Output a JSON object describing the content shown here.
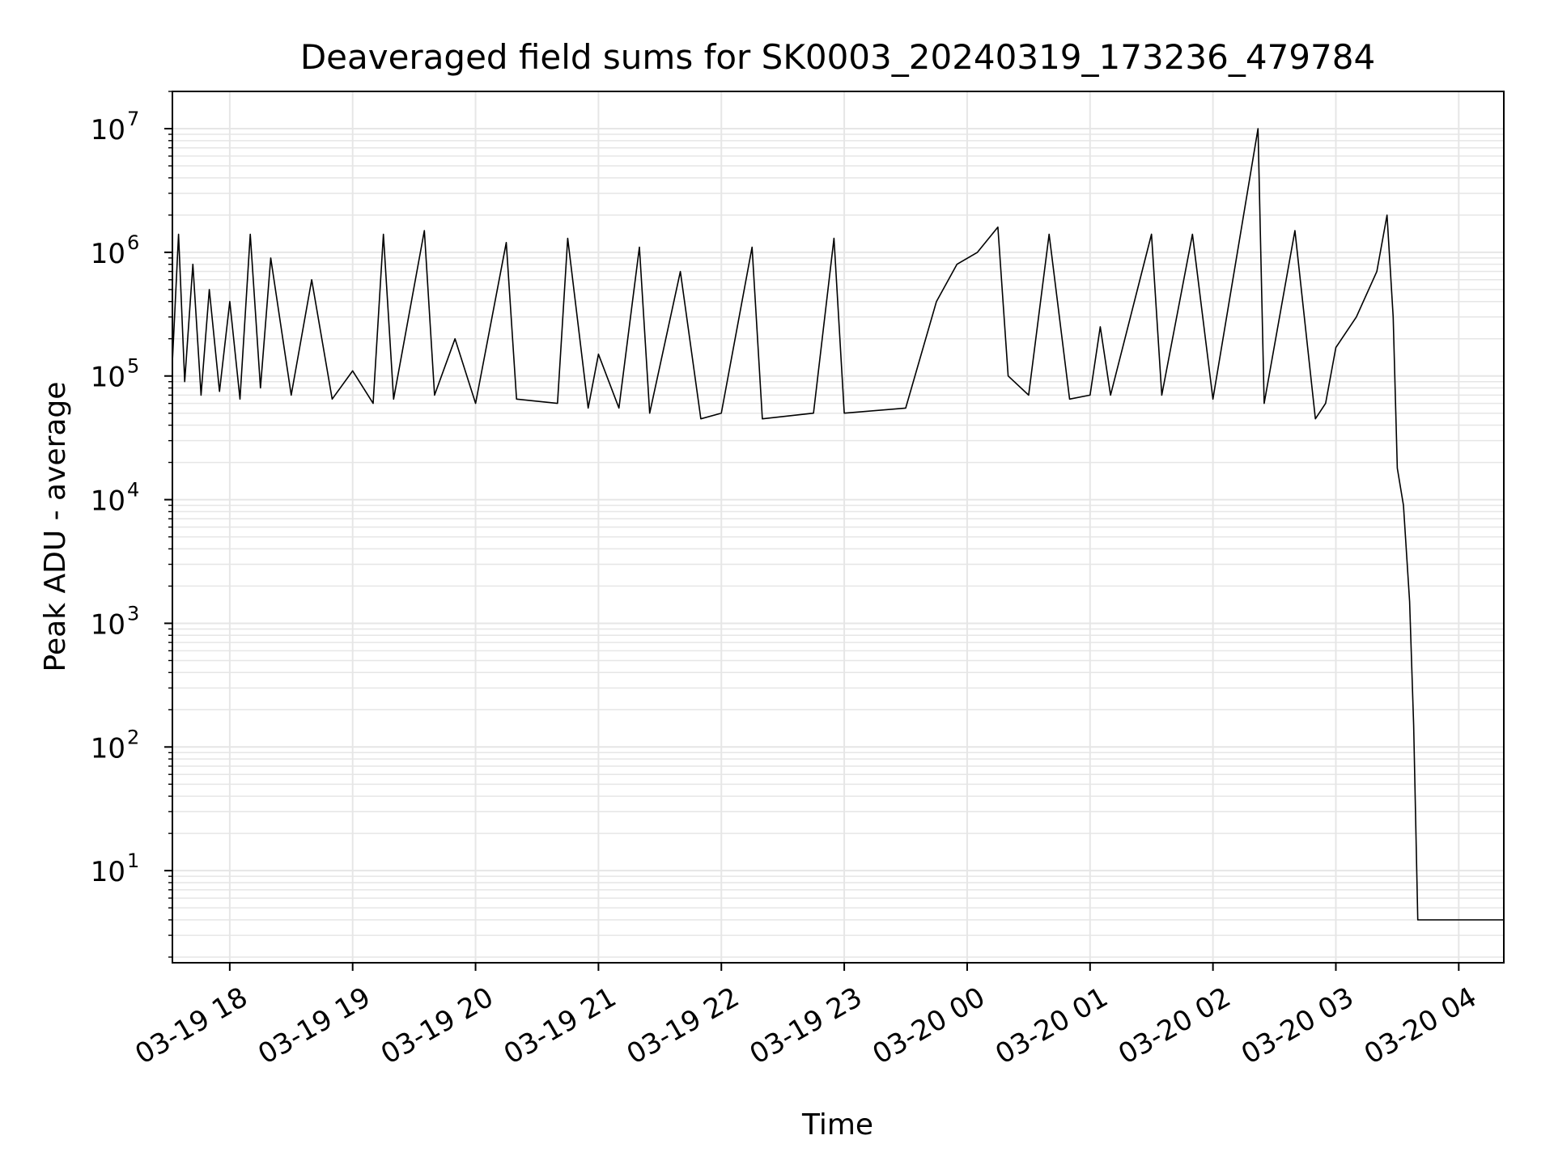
{
  "chart_data": {
    "type": "line",
    "title": "Deaveraged field sums for SK0003_20240319_173236_479784",
    "xlabel": "Time",
    "ylabel": "Peak ADU - average",
    "yscale": "log",
    "ylim": [
      1.8,
      20000000
    ],
    "xlim": [
      "2024-03-19 17:32",
      "2024-03-20 04:22"
    ],
    "grid": true,
    "line_color": "#000000",
    "grid_color": "#e6e6e6",
    "x_ticks": [
      {
        "t": "2024-03-19 18:00",
        "label": "03-19 18"
      },
      {
        "t": "2024-03-19 19:00",
        "label": "03-19 19"
      },
      {
        "t": "2024-03-19 20:00",
        "label": "03-19 20"
      },
      {
        "t": "2024-03-19 21:00",
        "label": "03-19 21"
      },
      {
        "t": "2024-03-19 22:00",
        "label": "03-19 22"
      },
      {
        "t": "2024-03-19 23:00",
        "label": "03-19 23"
      },
      {
        "t": "2024-03-20 00:00",
        "label": "03-20 00"
      },
      {
        "t": "2024-03-20 01:00",
        "label": "03-20 01"
      },
      {
        "t": "2024-03-20 02:00",
        "label": "03-20 02"
      },
      {
        "t": "2024-03-20 03:00",
        "label": "03-20 03"
      },
      {
        "t": "2024-03-20 04:00",
        "label": "03-20 04"
      }
    ],
    "y_ticks": [
      {
        "value": 10,
        "base": "10",
        "exp": "1"
      },
      {
        "value": 100,
        "base": "10",
        "exp": "2"
      },
      {
        "value": 1000,
        "base": "10",
        "exp": "3"
      },
      {
        "value": 10000,
        "base": "10",
        "exp": "4"
      },
      {
        "value": 100000,
        "base": "10",
        "exp": "5"
      },
      {
        "value": 1000000,
        "base": "10",
        "exp": "6"
      },
      {
        "value": 10000000,
        "base": "10",
        "exp": "7"
      }
    ],
    "series": [
      {
        "points": [
          [
            "2024-03-19 17:32",
            130000
          ],
          [
            "2024-03-19 17:35",
            1400000
          ],
          [
            "2024-03-19 17:38",
            90000
          ],
          [
            "2024-03-19 17:42",
            800000
          ],
          [
            "2024-03-19 17:46",
            70000
          ],
          [
            "2024-03-19 17:50",
            500000
          ],
          [
            "2024-03-19 17:55",
            75000
          ],
          [
            "2024-03-19 18:00",
            400000
          ],
          [
            "2024-03-19 18:05",
            65000
          ],
          [
            "2024-03-19 18:10",
            1400000
          ],
          [
            "2024-03-19 18:15",
            80000
          ],
          [
            "2024-03-19 18:20",
            900000
          ],
          [
            "2024-03-19 18:30",
            70000
          ],
          [
            "2024-03-19 18:40",
            600000
          ],
          [
            "2024-03-19 18:50",
            65000
          ],
          [
            "2024-03-19 19:00",
            110000
          ],
          [
            "2024-03-19 19:10",
            60000
          ],
          [
            "2024-03-19 19:15",
            1400000
          ],
          [
            "2024-03-19 19:20",
            65000
          ],
          [
            "2024-03-19 19:35",
            1500000
          ],
          [
            "2024-03-19 19:40",
            70000
          ],
          [
            "2024-03-19 19:50",
            200000
          ],
          [
            "2024-03-19 20:00",
            60000
          ],
          [
            "2024-03-19 20:15",
            1200000
          ],
          [
            "2024-03-19 20:20",
            65000
          ],
          [
            "2024-03-19 20:40",
            60000
          ],
          [
            "2024-03-19 20:45",
            1300000
          ],
          [
            "2024-03-19 20:55",
            55000
          ],
          [
            "2024-03-19 21:00",
            150000
          ],
          [
            "2024-03-19 21:10",
            55000
          ],
          [
            "2024-03-19 21:20",
            1100000
          ],
          [
            "2024-03-19 21:25",
            50000
          ],
          [
            "2024-03-19 21:40",
            700000
          ],
          [
            "2024-03-19 21:50",
            45000
          ],
          [
            "2024-03-19 22:00",
            50000
          ],
          [
            "2024-03-19 22:15",
            1100000
          ],
          [
            "2024-03-19 22:20",
            45000
          ],
          [
            "2024-03-19 22:45",
            50000
          ],
          [
            "2024-03-19 22:55",
            1300000
          ],
          [
            "2024-03-19 23:00",
            50000
          ],
          [
            "2024-03-19 23:30",
            55000
          ],
          [
            "2024-03-19 23:45",
            400000
          ],
          [
            "2024-03-19 23:55",
            800000
          ],
          [
            "2024-03-20 00:05",
            1000000
          ],
          [
            "2024-03-20 00:15",
            1600000
          ],
          [
            "2024-03-20 00:20",
            100000
          ],
          [
            "2024-03-20 00:30",
            70000
          ],
          [
            "2024-03-20 00:40",
            1400000
          ],
          [
            "2024-03-20 00:50",
            65000
          ],
          [
            "2024-03-20 01:00",
            70000
          ],
          [
            "2024-03-20 01:05",
            250000
          ],
          [
            "2024-03-20 01:10",
            70000
          ],
          [
            "2024-03-20 01:30",
            1400000
          ],
          [
            "2024-03-20 01:35",
            70000
          ],
          [
            "2024-03-20 01:50",
            1400000
          ],
          [
            "2024-03-20 02:00",
            65000
          ],
          [
            "2024-03-20 02:22",
            10000000
          ],
          [
            "2024-03-20 02:25",
            60000
          ],
          [
            "2024-03-20 02:40",
            1500000
          ],
          [
            "2024-03-20 02:50",
            45000
          ],
          [
            "2024-03-20 02:55",
            60000
          ],
          [
            "2024-03-20 03:00",
            170000
          ],
          [
            "2024-03-20 03:10",
            300000
          ],
          [
            "2024-03-20 03:20",
            700000
          ],
          [
            "2024-03-20 03:25",
            2000000
          ],
          [
            "2024-03-20 03:28",
            300000
          ],
          [
            "2024-03-20 03:30",
            18000
          ],
          [
            "2024-03-20 03:33",
            9000
          ],
          [
            "2024-03-20 03:36",
            1500
          ],
          [
            "2024-03-20 03:38",
            150
          ],
          [
            "2024-03-20 03:40",
            4
          ],
          [
            "2024-03-20 04:22",
            4
          ]
        ]
      }
    ]
  }
}
